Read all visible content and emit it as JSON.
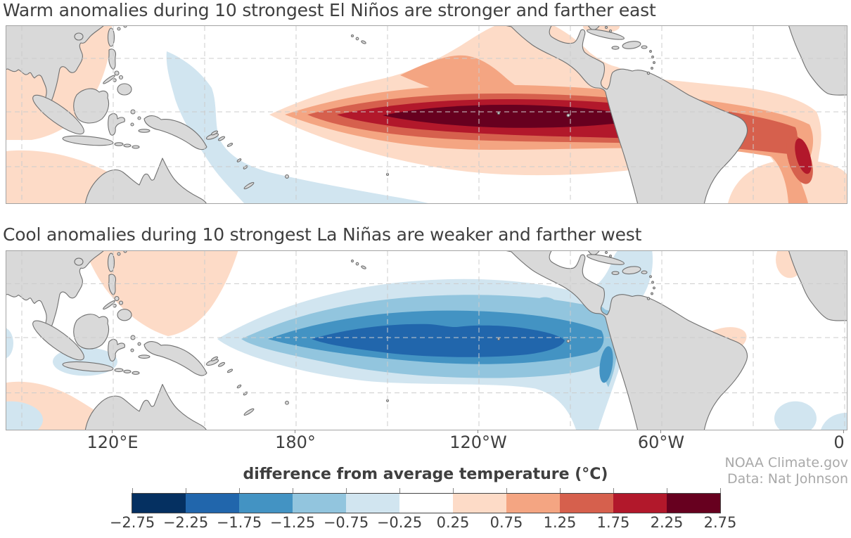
{
  "figure": {
    "panels": [
      {
        "title": "Warm anomalies during 10 strongest El Niños are stronger and farther east"
      },
      {
        "title": "Cool anomalies during 10 strongest La Niñas are weaker and farther west"
      }
    ],
    "axis": {
      "tick_labels": [
        "120°E",
        "180°",
        "120°W",
        "60°W",
        "0"
      ]
    },
    "credit": {
      "line1": "NOAA Climate.gov",
      "line2": "Data: Nat Johnson"
    },
    "colorbar": {
      "title": "difference from average temperature (°C)",
      "tick_labels": [
        "−2.75",
        "−2.25",
        "−1.75",
        "−1.25",
        "−0.75",
        "−0.25",
        "0.25",
        "0.75",
        "1.25",
        "1.75",
        "2.25",
        "2.75"
      ],
      "segment_colors": [
        "#053061",
        "#2166ac",
        "#4393c3",
        "#92c5de",
        "#d1e5f0",
        "#ffffff",
        "#fddbc7",
        "#f4a582",
        "#d6604d",
        "#b2182b",
        "#67001f"
      ]
    }
  },
  "palette": {
    "warm": [
      "#fddbc7",
      "#f4a582",
      "#d6604d",
      "#b2182b",
      "#67001f"
    ],
    "cool": [
      "#d1e5f0",
      "#92c5de",
      "#4393c3",
      "#2166ac"
    ]
  },
  "theme": {
    "land": "#d9d9d9",
    "coastline": "#707070",
    "grid": "#cccccc",
    "map_border": "#a3a3a3",
    "title_color": "#3f3f3f",
    "label_color": "#3f3f3f",
    "credit_color": "#a9a9a9",
    "colorbar_border": "#454545",
    "background": "#ffffff"
  },
  "chart_data": {
    "type": "heatmap",
    "subtype": "filled-contour-anomaly-maps",
    "units": "°C",
    "colorbar_label": "difference from average temperature (°C)",
    "contour_levels": [
      -2.75,
      -2.25,
      -1.75,
      -1.25,
      -0.75,
      -0.25,
      0.25,
      0.75,
      1.25,
      1.75,
      2.25,
      2.75
    ],
    "x_axis_tick_labels": [
      "120°E",
      "180°",
      "120°W",
      "60°W",
      "0"
    ],
    "panels": [
      {
        "title": "Warm anomalies during 10 strongest El Niños are stronger and farther east",
        "anomaly_sign": "warm",
        "peak_band": "greater than 2.25 °C",
        "peak_location": "eastern equatorial Pacific, roughly 160°W to the South American coast"
      },
      {
        "title": "Cool anomalies during 10 strongest La Niñas are weaker and farther west",
        "anomaly_sign": "cool",
        "peak_band": "−1.75 to −2.25 °C",
        "peak_location": "central equatorial Pacific, roughly 175°E to 135°W"
      }
    ],
    "source": "NOAA Climate.gov, Data: Nat Johnson"
  }
}
